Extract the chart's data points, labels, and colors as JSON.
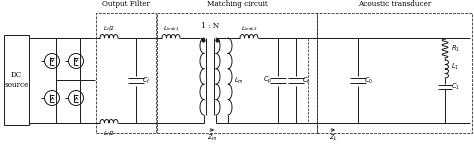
{
  "fig_width": 4.74,
  "fig_height": 1.53,
  "dpi": 100,
  "bg_color": "#ffffff",
  "line_color": "#1a1a1a",
  "line_width": 0.7,
  "font_size": 5.2,
  "labels": {
    "dc_source": "DC\nsource",
    "output_filter": "Output Filter",
    "matching_circuit": "Matching circuit",
    "acoustic_transducer": "Acoustic transducer",
    "Lf2_top": "$L_f /2$",
    "Lf2_bot": "$L_f /2$",
    "Cf": "$C_f$",
    "Lleak1": "$L_{leak1}$",
    "turns_ratio": "1 : N",
    "Lm": "$L_m$",
    "Lleak2": "$L_{leak2}$",
    "Cp": "$C_p$",
    "Ct": "$C_t$",
    "C0": "$C_0$",
    "R1": "$R_1$",
    "L1": "$L_1$",
    "C1": "$C_1$",
    "Zm": "$Z_m$",
    "ZL": "$Z_L$"
  }
}
